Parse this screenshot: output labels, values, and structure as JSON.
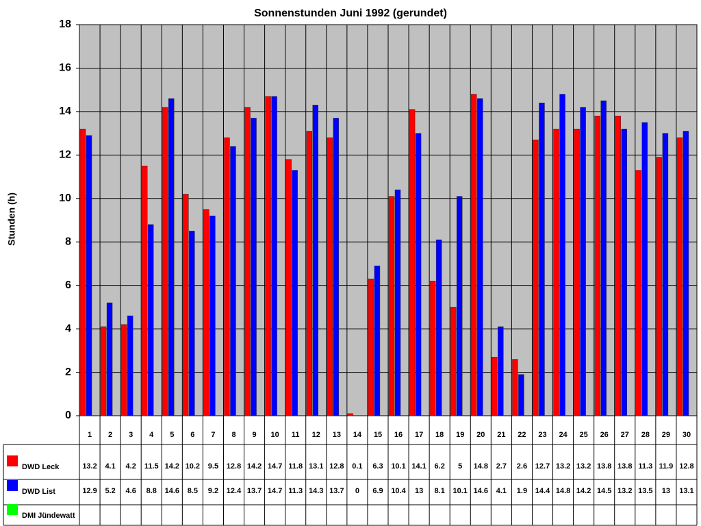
{
  "chart_data": {
    "type": "bar",
    "title": "Sonnenstunden Juni 1992 (gerundet)",
    "y_label": "Stunden (h)",
    "categories": [
      "1",
      "2",
      "3",
      "4",
      "5",
      "6",
      "7",
      "8",
      "9",
      "10",
      "11",
      "12",
      "13",
      "14",
      "15",
      "16",
      "17",
      "18",
      "19",
      "20",
      "21",
      "22",
      "23",
      "24",
      "25",
      "26",
      "27",
      "28",
      "29",
      "30"
    ],
    "series": [
      {
        "name": "DWD Leck",
        "color": "#ff0000",
        "values": [
          13.2,
          4.1,
          4.2,
          11.5,
          14.2,
          10.2,
          9.5,
          12.8,
          14.2,
          14.7,
          11.8,
          13.1,
          12.8,
          0.1,
          6.3,
          10.1,
          14.1,
          6.2,
          5,
          14.8,
          2.7,
          2.6,
          12.7,
          13.2,
          13.2,
          13.8,
          13.8,
          11.3,
          11.9,
          12.8
        ]
      },
      {
        "name": "DWD List",
        "color": "#0000ff",
        "values": [
          12.9,
          5.2,
          4.6,
          8.8,
          14.6,
          8.5,
          9.2,
          12.4,
          13.7,
          14.7,
          11.3,
          14.3,
          13.7,
          0,
          6.9,
          10.4,
          13,
          8.1,
          10.1,
          14.6,
          4.1,
          1.9,
          14.4,
          14.8,
          14.2,
          14.5,
          13.2,
          13.5,
          13,
          13.1
        ]
      },
      {
        "name": "DMI Jündewatt",
        "color": "#00ff00",
        "values": [
          null,
          null,
          null,
          null,
          null,
          null,
          null,
          null,
          null,
          null,
          null,
          null,
          null,
          null,
          null,
          null,
          null,
          null,
          null,
          null,
          null,
          null,
          null,
          null,
          null,
          null,
          null,
          null,
          null,
          null
        ]
      }
    ],
    "ylim": [
      0,
      18
    ],
    "yticks": [
      0,
      2,
      4,
      6,
      8,
      10,
      12,
      14,
      16,
      18
    ],
    "grid": true,
    "data_table": true
  }
}
